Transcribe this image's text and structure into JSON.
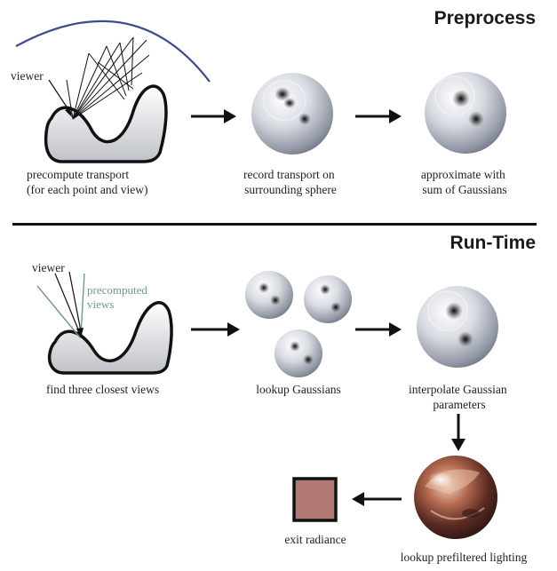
{
  "preprocess": {
    "heading": "Preprocess",
    "viewer_label": "viewer",
    "step1_caption": [
      "precompute transport",
      "(for each point and view)"
    ],
    "step2_caption": [
      "record transport on",
      "surrounding sphere"
    ],
    "step3_caption": [
      "approximate with",
      "sum of Gaussians"
    ]
  },
  "runtime": {
    "heading": "Run-Time",
    "viewer_label": "viewer",
    "precomputed_label": [
      "precomputed",
      "views"
    ],
    "step1_caption": "find three closest views",
    "step2_caption": "lookup Gaussians",
    "step3_caption": [
      "interpolate Gaussian",
      "parameters"
    ],
    "step4_caption": "lookup prefiltered lighting",
    "step5_caption": "exit radiance"
  },
  "colors": {
    "sphere_arc": "#3d4a8c",
    "precomputed_views": "#6f9c84",
    "exit_radiance_fill": "#b07a72",
    "arrow": "#111111"
  }
}
